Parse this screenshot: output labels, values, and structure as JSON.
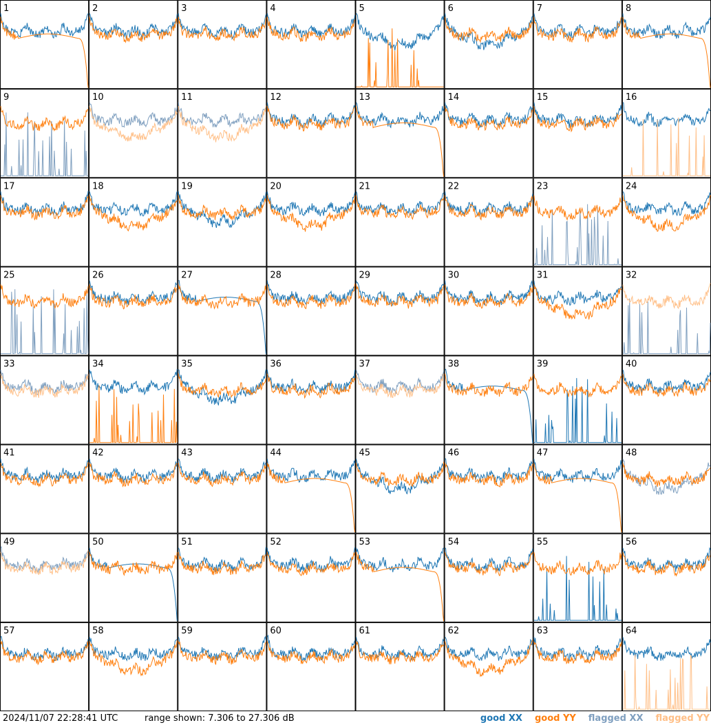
{
  "footer": {
    "timestamp": "2024/11/07 22:28:41 UTC",
    "range_label": "range shown: ",
    "range_value": "7.306 to 27.306 dB"
  },
  "legend": {
    "good_xx": "good XX",
    "good_yy": "good YY",
    "flagged_xx": "flagged XX",
    "flagged_yy": "flagged YY"
  },
  "colors": {
    "good_xx": "#1f77b4",
    "good_yy": "#ff7f0e",
    "flagged_xx": "#7f9fbf",
    "flagged_yy": "#ffbf87",
    "border": "#000000"
  },
  "chart_data": {
    "type": "line",
    "grid": {
      "rows": 8,
      "cols": 8
    },
    "y_unit": "dB",
    "ylim": [
      7.306,
      27.306
    ],
    "panels": [
      {
        "label": "1",
        "xx": "good",
        "yy": "good",
        "xx_shape": "normal",
        "yy_shape": "rolloff"
      },
      {
        "label": "2",
        "xx": "good",
        "yy": "good",
        "xx_shape": "normal",
        "yy_shape": "normal"
      },
      {
        "label": "3",
        "xx": "good",
        "yy": "good",
        "xx_shape": "normal",
        "yy_shape": "normal"
      },
      {
        "label": "4",
        "xx": "good",
        "yy": "good",
        "xx_shape": "normal",
        "yy_shape": "normal"
      },
      {
        "label": "5",
        "xx": "good",
        "yy": "good",
        "xx_shape": "dip",
        "yy_shape": "spikes"
      },
      {
        "label": "6",
        "xx": "good",
        "yy": "good",
        "xx_shape": "dip",
        "yy_shape": "normal"
      },
      {
        "label": "7",
        "xx": "good",
        "yy": "good",
        "xx_shape": "normal",
        "yy_shape": "normal"
      },
      {
        "label": "8",
        "xx": "good",
        "yy": "good",
        "xx_shape": "normal",
        "yy_shape": "rolloff"
      },
      {
        "label": "9",
        "xx": "flagged",
        "yy": "good",
        "xx_shape": "spikes",
        "yy_shape": "normal"
      },
      {
        "label": "10",
        "xx": "flagged",
        "yy": "flagged",
        "xx_shape": "normal",
        "yy_shape": "dip"
      },
      {
        "label": "11",
        "xx": "flagged",
        "yy": "flagged",
        "xx_shape": "normal",
        "yy_shape": "dip"
      },
      {
        "label": "12",
        "xx": "good",
        "yy": "good",
        "xx_shape": "normal",
        "yy_shape": "normal"
      },
      {
        "label": "13",
        "xx": "good",
        "yy": "good",
        "xx_shape": "normal",
        "yy_shape": "rolloff"
      },
      {
        "label": "14",
        "xx": "good",
        "yy": "good",
        "xx_shape": "normal",
        "yy_shape": "normal"
      },
      {
        "label": "15",
        "xx": "good",
        "yy": "good",
        "xx_shape": "normal",
        "yy_shape": "normal"
      },
      {
        "label": "16",
        "xx": "good",
        "yy": "flagged",
        "xx_shape": "normal",
        "yy_shape": "spikes"
      },
      {
        "label": "17",
        "xx": "good",
        "yy": "good",
        "xx_shape": "normal",
        "yy_shape": "normal"
      },
      {
        "label": "18",
        "xx": "good",
        "yy": "good",
        "xx_shape": "normal",
        "yy_shape": "dip"
      },
      {
        "label": "19",
        "xx": "good",
        "yy": "good",
        "xx_shape": "dip",
        "yy_shape": "normal"
      },
      {
        "label": "20",
        "xx": "good",
        "yy": "good",
        "xx_shape": "normal",
        "yy_shape": "dip"
      },
      {
        "label": "21",
        "xx": "good",
        "yy": "good",
        "xx_shape": "normal",
        "yy_shape": "normal"
      },
      {
        "label": "22",
        "xx": "good",
        "yy": "good",
        "xx_shape": "normal",
        "yy_shape": "normal"
      },
      {
        "label": "23",
        "xx": "flagged",
        "yy": "good",
        "xx_shape": "spikes",
        "yy_shape": "normal"
      },
      {
        "label": "24",
        "xx": "good",
        "yy": "good",
        "xx_shape": "normal",
        "yy_shape": "dip"
      },
      {
        "label": "25",
        "xx": "flagged",
        "yy": "good",
        "xx_shape": "spikes",
        "yy_shape": "normal"
      },
      {
        "label": "26",
        "xx": "good",
        "yy": "good",
        "xx_shape": "normal",
        "yy_shape": "normal"
      },
      {
        "label": "27",
        "xx": "good",
        "yy": "good",
        "xx_shape": "rolloff",
        "yy_shape": "normal"
      },
      {
        "label": "28",
        "xx": "good",
        "yy": "good",
        "xx_shape": "normal",
        "yy_shape": "normal"
      },
      {
        "label": "29",
        "xx": "good",
        "yy": "good",
        "xx_shape": "normal",
        "yy_shape": "normal"
      },
      {
        "label": "30",
        "xx": "good",
        "yy": "good",
        "xx_shape": "normal",
        "yy_shape": "normal"
      },
      {
        "label": "31",
        "xx": "good",
        "yy": "good",
        "xx_shape": "normal",
        "yy_shape": "dip"
      },
      {
        "label": "32",
        "xx": "flagged",
        "yy": "flagged",
        "xx_shape": "spikes",
        "yy_shape": "normal"
      },
      {
        "label": "33",
        "xx": "flagged",
        "yy": "flagged",
        "xx_shape": "normal",
        "yy_shape": "normal"
      },
      {
        "label": "34",
        "xx": "good",
        "yy": "good",
        "xx_shape": "normal",
        "yy_shape": "spikes"
      },
      {
        "label": "35",
        "xx": "good",
        "yy": "good",
        "xx_shape": "dip",
        "yy_shape": "normal"
      },
      {
        "label": "36",
        "xx": "good",
        "yy": "good",
        "xx_shape": "normal",
        "yy_shape": "normal"
      },
      {
        "label": "37",
        "xx": "flagged",
        "yy": "flagged",
        "xx_shape": "normal",
        "yy_shape": "normal"
      },
      {
        "label": "38",
        "xx": "good",
        "yy": "good",
        "xx_shape": "rolloff",
        "yy_shape": "normal"
      },
      {
        "label": "39",
        "xx": "good",
        "yy": "good",
        "xx_shape": "spikes",
        "yy_shape": "normal"
      },
      {
        "label": "40",
        "xx": "good",
        "yy": "good",
        "xx_shape": "normal",
        "yy_shape": "normal"
      },
      {
        "label": "41",
        "xx": "good",
        "yy": "good",
        "xx_shape": "normal",
        "yy_shape": "normal"
      },
      {
        "label": "42",
        "xx": "good",
        "yy": "good",
        "xx_shape": "normal",
        "yy_shape": "normal"
      },
      {
        "label": "43",
        "xx": "good",
        "yy": "good",
        "xx_shape": "normal",
        "yy_shape": "normal"
      },
      {
        "label": "44",
        "xx": "good",
        "yy": "good",
        "xx_shape": "normal",
        "yy_shape": "rolloff"
      },
      {
        "label": "45",
        "xx": "good",
        "yy": "good",
        "xx_shape": "dip",
        "yy_shape": "normal"
      },
      {
        "label": "46",
        "xx": "good",
        "yy": "good",
        "xx_shape": "normal",
        "yy_shape": "normal"
      },
      {
        "label": "47",
        "xx": "good",
        "yy": "good",
        "xx_shape": "normal",
        "yy_shape": "rolloff"
      },
      {
        "label": "48",
        "xx": "flagged",
        "yy": "good",
        "xx_shape": "dip",
        "yy_shape": "normal"
      },
      {
        "label": "49",
        "xx": "flagged",
        "yy": "flagged",
        "xx_shape": "normal",
        "yy_shape": "normal"
      },
      {
        "label": "50",
        "xx": "good",
        "yy": "good",
        "xx_shape": "rolloff",
        "yy_shape": "normal"
      },
      {
        "label": "51",
        "xx": "good",
        "yy": "good",
        "xx_shape": "normal",
        "yy_shape": "normal"
      },
      {
        "label": "52",
        "xx": "good",
        "yy": "good",
        "xx_shape": "normal",
        "yy_shape": "normal"
      },
      {
        "label": "53",
        "xx": "good",
        "yy": "good",
        "xx_shape": "normal",
        "yy_shape": "rolloff"
      },
      {
        "label": "54",
        "xx": "good",
        "yy": "good",
        "xx_shape": "normal",
        "yy_shape": "normal"
      },
      {
        "label": "55",
        "xx": "good",
        "yy": "good",
        "xx_shape": "spikes",
        "yy_shape": "normal"
      },
      {
        "label": "56",
        "xx": "good",
        "yy": "good",
        "xx_shape": "normal",
        "yy_shape": "normal"
      },
      {
        "label": "57",
        "xx": "good",
        "yy": "good",
        "xx_shape": "normal",
        "yy_shape": "normal"
      },
      {
        "label": "58",
        "xx": "good",
        "yy": "good",
        "xx_shape": "normal",
        "yy_shape": "dip"
      },
      {
        "label": "59",
        "xx": "good",
        "yy": "good",
        "xx_shape": "normal",
        "yy_shape": "normal"
      },
      {
        "label": "60",
        "xx": "good",
        "yy": "good",
        "xx_shape": "normal",
        "yy_shape": "normal"
      },
      {
        "label": "61",
        "xx": "good",
        "yy": "good",
        "xx_shape": "normal",
        "yy_shape": "normal"
      },
      {
        "label": "62",
        "xx": "good",
        "yy": "good",
        "xx_shape": "normal",
        "yy_shape": "dip"
      },
      {
        "label": "63",
        "xx": "good",
        "yy": "good",
        "xx_shape": "normal",
        "yy_shape": "normal"
      },
      {
        "label": "64",
        "xx": "good",
        "yy": "flagged",
        "xx_shape": "normal",
        "yy_shape": "spikes"
      }
    ]
  }
}
